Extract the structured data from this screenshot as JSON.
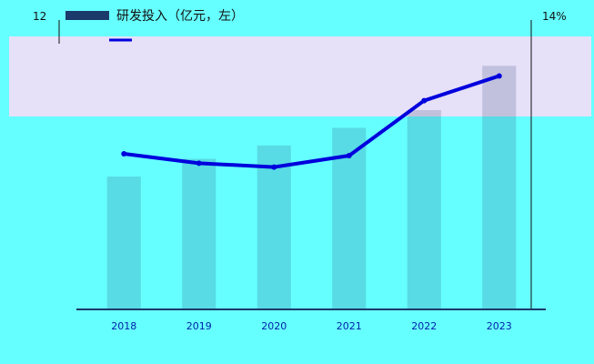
{
  "chart_data": {
    "type": "bar",
    "legend": {
      "bar_label": "研发投入（亿元，左）",
      "line_label": ""
    },
    "left_axis": {
      "top_label": "12",
      "ylim": [
        0,
        12
      ]
    },
    "right_axis": {
      "top_label": "14%",
      "ylim": [
        0,
        14
      ]
    },
    "categories": [
      "2018",
      "2019",
      "2020",
      "2021",
      "2022",
      "2023"
    ],
    "series": [
      {
        "name": "研发投入（亿元，左）",
        "type": "bar",
        "values": [
          6.0,
          6.8,
          7.4,
          8.2,
          9.0,
          11.0
        ],
        "color": "#1b3a6b"
      },
      {
        "name": "",
        "type": "line",
        "values": [
          8.2,
          7.7,
          7.5,
          8.1,
          11.0,
          12.3
        ],
        "color": "#0000dd"
      }
    ],
    "grid": false,
    "colors": {
      "background": "#66ffff",
      "band": "#e6e0f8",
      "bar": "#1b3a6b",
      "line": "#0000dd"
    }
  }
}
